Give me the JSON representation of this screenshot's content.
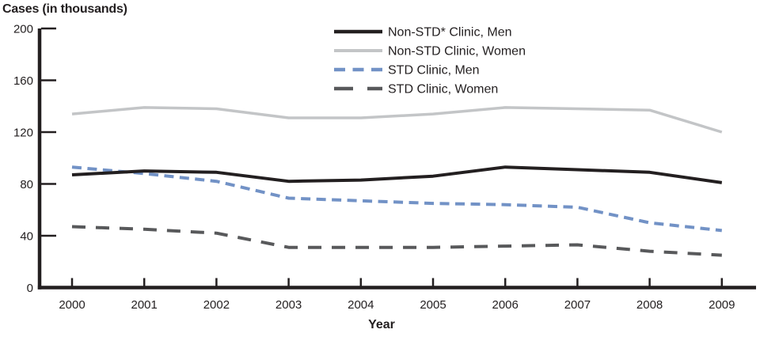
{
  "chart_data": {
    "type": "line",
    "title": "Cases (in thousands)",
    "xlabel": "Year",
    "categories": [
      "2000",
      "2001",
      "2002",
      "2003",
      "2004",
      "2005",
      "2006",
      "2007",
      "2008",
      "2009"
    ],
    "ylim": [
      0,
      200
    ],
    "yticks": [
      0,
      40,
      80,
      120,
      160,
      200
    ],
    "grid": false,
    "legend_position": "top-center",
    "axis_color": "#231f20",
    "text_color": "#231f20",
    "series": [
      {
        "name": "Non-STD* Clinic, Men",
        "color": "#231f20",
        "line_style": "solid",
        "width": 4,
        "values": [
          87,
          90,
          89,
          82,
          83,
          86,
          93,
          91,
          89,
          81
        ]
      },
      {
        "name": "Non-STD Clinic, Women",
        "color": "#c3c5c7",
        "line_style": "solid",
        "width": 3.5,
        "values": [
          134,
          139,
          138,
          131,
          131,
          134,
          139,
          138,
          137,
          120
        ]
      },
      {
        "name": "STD Clinic, Men",
        "color": "#7292c6",
        "line_style": "dashed",
        "dash": "12 7.5",
        "legend_dash": "14 9.5",
        "width": 4,
        "values": [
          93,
          88,
          82,
          69,
          67,
          65,
          64,
          62,
          50,
          44
        ]
      },
      {
        "name": "STD Clinic, Women",
        "color": "#58595b",
        "line_style": "long-dashed",
        "dash": "17 13",
        "legend_dash": "24 18",
        "width": 4,
        "values": [
          47,
          45,
          42,
          31,
          31,
          31,
          32,
          33,
          28,
          25
        ]
      }
    ]
  }
}
